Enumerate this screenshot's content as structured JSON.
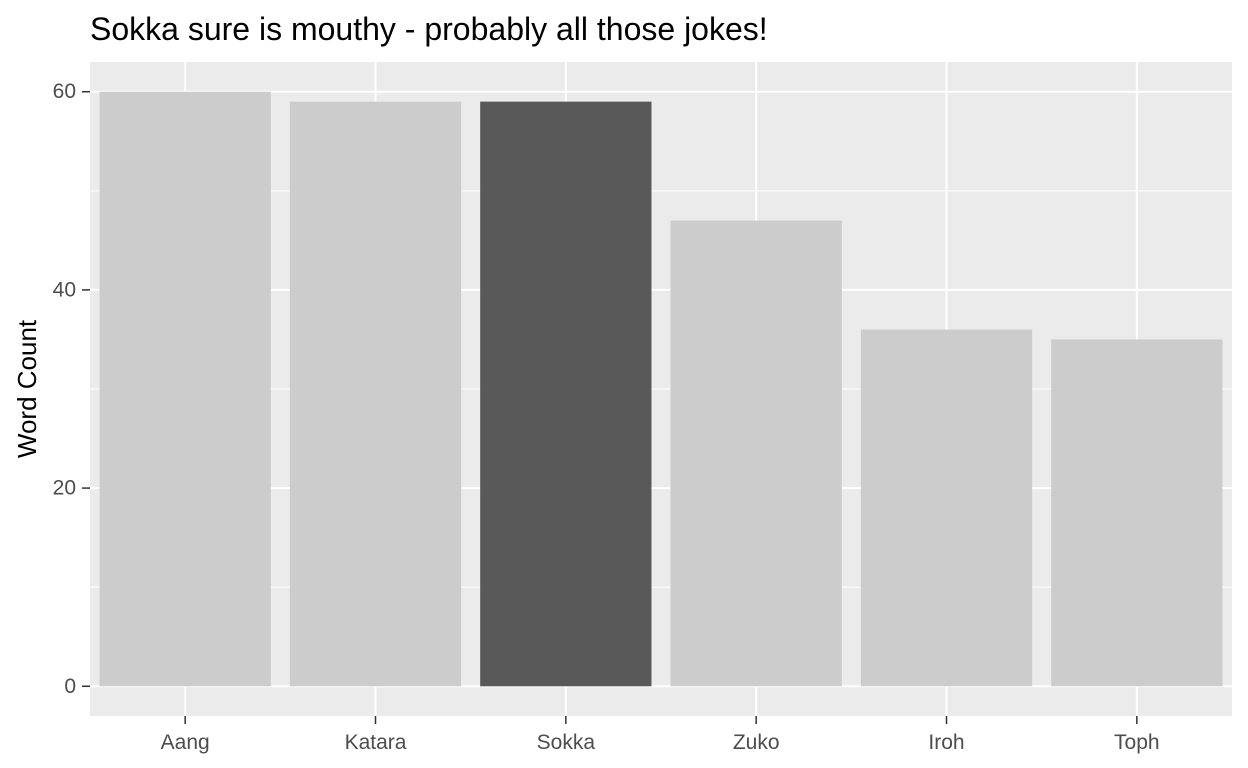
{
  "chart_data": {
    "type": "bar",
    "title": "Sokka sure is mouthy - probably all those jokes!",
    "xlabel": "",
    "ylabel": "Word Count",
    "categories": [
      "Aang",
      "Katara",
      "Sokka",
      "Zuko",
      "Iroh",
      "Toph"
    ],
    "values": [
      60,
      59,
      59,
      47,
      36,
      35
    ],
    "highlight": "Sokka",
    "ylim": [
      -3,
      63
    ],
    "yticks": [
      0,
      20,
      40,
      60
    ],
    "yticks_minor": [
      10,
      30,
      50
    ],
    "grid": true,
    "legend": "none",
    "colors": {
      "panel_background": "#ebebeb",
      "grid_major": "#ffffff",
      "bar_default": "#cccccc",
      "bar_highlight": "#595959",
      "tick_mark": "#333333",
      "tick_text": "#4d4d4d",
      "title_text": "#000000"
    }
  }
}
